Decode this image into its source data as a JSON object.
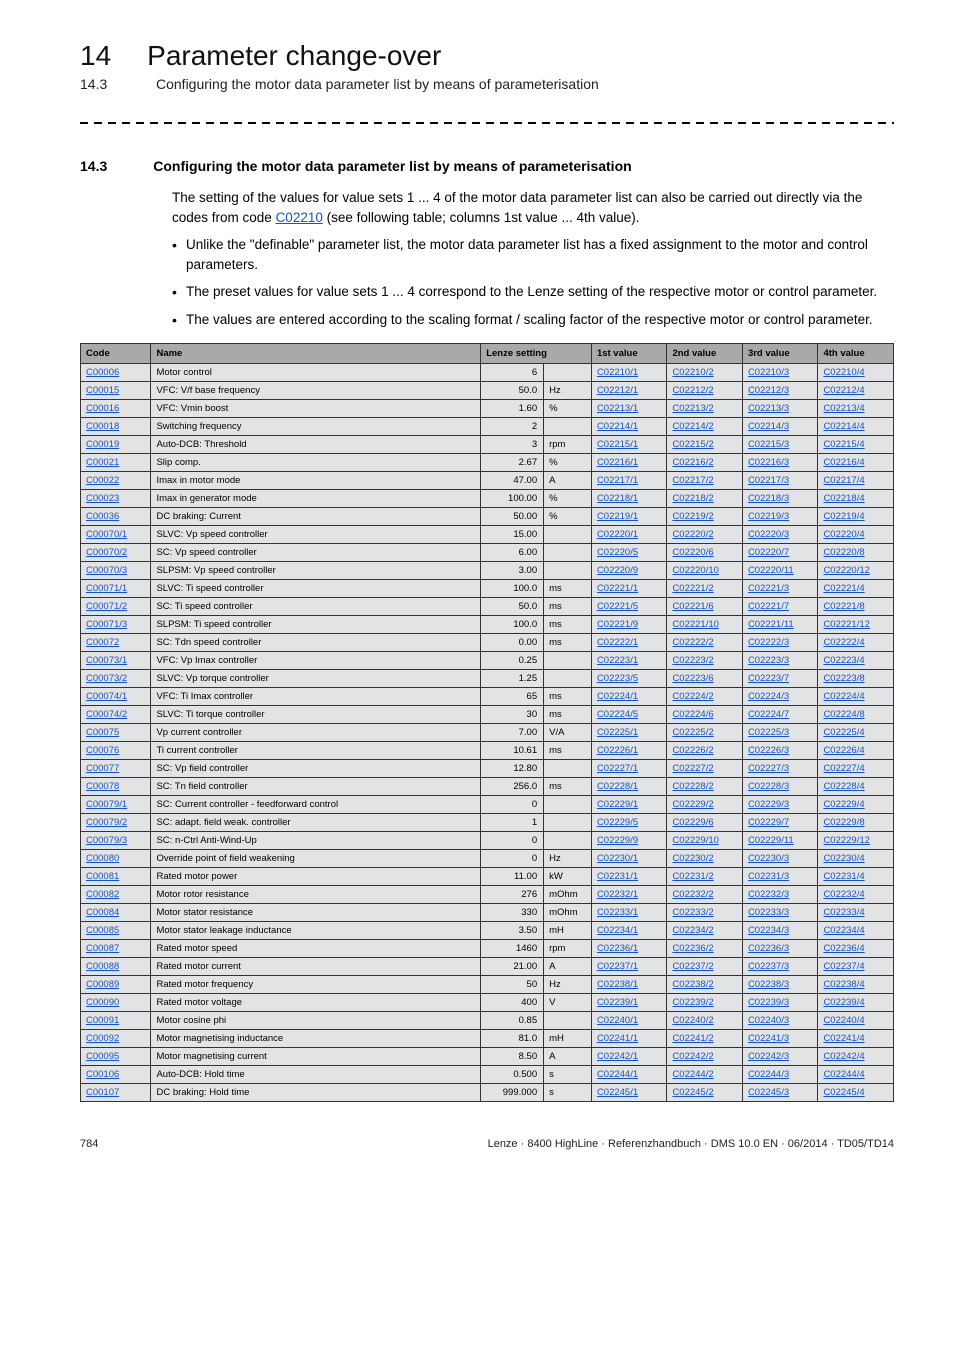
{
  "header": {
    "chapter_num": "14",
    "chapter_title": "Parameter change-over",
    "sub_num": "14.3",
    "sub_title": "Configuring the motor data parameter list by means of parameterisation"
  },
  "section": {
    "num": "14.3",
    "title": "Configuring the motor data parameter list by means of parameterisation"
  },
  "intro": {
    "para1_a": "The setting of the values for value sets 1 ... 4 of the motor data parameter list can also be carried out directly via the codes from code ",
    "para1_link": "C02210",
    "para1_b": " (see following table; columns 1st value ... 4th value).",
    "bullet1": "Unlike the \"definable\" parameter list, the motor data parameter list has a fixed assignment to the motor and control parameters.",
    "bullet2": "The preset values for value sets 1 ... 4 correspond to the Lenze setting of the respective motor or control parameter.",
    "bullet3": "The values are entered according to the scaling format / scaling factor of the respective motor or control parameter."
  },
  "table": {
    "columns": [
      "Code",
      "Name",
      "Lenze setting",
      "",
      "1st value",
      "2nd value",
      "3rd value",
      "4th value"
    ],
    "rows": [
      {
        "code": "C00006",
        "name": "Motor control",
        "set": "6",
        "unit": "",
        "v": [
          "C02210/1",
          "C02210/2",
          "C02210/3",
          "C02210/4"
        ]
      },
      {
        "code": "C00015",
        "name": "VFC: V/f base frequency",
        "set": "50.0",
        "unit": "Hz",
        "v": [
          "C02212/1",
          "C02212/2",
          "C02212/3",
          "C02212/4"
        ]
      },
      {
        "code": "C00016",
        "name": "VFC: Vmin boost",
        "set": "1.60",
        "unit": "%",
        "v": [
          "C02213/1",
          "C02213/2",
          "C02213/3",
          "C02213/4"
        ]
      },
      {
        "code": "C00018",
        "name": "Switching frequency",
        "set": "2",
        "unit": "",
        "v": [
          "C02214/1",
          "C02214/2",
          "C02214/3",
          "C02214/4"
        ]
      },
      {
        "code": "C00019",
        "name": "Auto-DCB: Threshold",
        "set": "3",
        "unit": "rpm",
        "v": [
          "C02215/1",
          "C02215/2",
          "C02215/3",
          "C02215/4"
        ]
      },
      {
        "code": "C00021",
        "name": "Slip comp.",
        "set": "2.67",
        "unit": "%",
        "v": [
          "C02216/1",
          "C02216/2",
          "C02216/3",
          "C02216/4"
        ]
      },
      {
        "code": "C00022",
        "name": "Imax in motor mode",
        "set": "47.00",
        "unit": "A",
        "v": [
          "C02217/1",
          "C02217/2",
          "C02217/3",
          "C02217/4"
        ]
      },
      {
        "code": "C00023",
        "name": "Imax in generator mode",
        "set": "100.00",
        "unit": "%",
        "v": [
          "C02218/1",
          "C02218/2",
          "C02218/3",
          "C02218/4"
        ]
      },
      {
        "code": "C00036",
        "name": "DC braking: Current",
        "set": "50.00",
        "unit": "%",
        "v": [
          "C02219/1",
          "C02219/2",
          "C02219/3",
          "C02219/4"
        ]
      },
      {
        "code": "C00070/1",
        "name": "SLVC: Vp speed controller",
        "set": "15.00",
        "unit": "",
        "v": [
          "C02220/1",
          "C02220/2",
          "C02220/3",
          "C02220/4"
        ]
      },
      {
        "code": "C00070/2",
        "name": "SC: Vp speed controller",
        "set": "6.00",
        "unit": "",
        "v": [
          "C02220/5",
          "C02220/6",
          "C02220/7",
          "C02220/8"
        ]
      },
      {
        "code": "C00070/3",
        "name": "SLPSM: Vp speed controller",
        "set": "3.00",
        "unit": "",
        "v": [
          "C02220/9",
          "C02220/10",
          "C02220/11",
          "C02220/12"
        ]
      },
      {
        "code": "C00071/1",
        "name": "SLVC: Ti speed controller",
        "set": "100.0",
        "unit": "ms",
        "v": [
          "C02221/1",
          "C02221/2",
          "C02221/3",
          "C02221/4"
        ]
      },
      {
        "code": "C00071/2",
        "name": "SC: Ti speed controller",
        "set": "50.0",
        "unit": "ms",
        "v": [
          "C02221/5",
          "C02221/6",
          "C02221/7",
          "C02221/8"
        ]
      },
      {
        "code": "C00071/3",
        "name": "SLPSM: Ti speed controller",
        "set": "100.0",
        "unit": "ms",
        "v": [
          "C02221/9",
          "C02221/10",
          "C02221/11",
          "C02221/12"
        ]
      },
      {
        "code": "C00072",
        "name": "SC: Tdn speed controller",
        "set": "0.00",
        "unit": "ms",
        "v": [
          "C02222/1",
          "C02222/2",
          "C02222/3",
          "C02222/4"
        ]
      },
      {
        "code": "C00073/1",
        "name": "VFC: Vp Imax controller",
        "set": "0.25",
        "unit": "",
        "v": [
          "C02223/1",
          "C02223/2",
          "C02223/3",
          "C02223/4"
        ]
      },
      {
        "code": "C00073/2",
        "name": "SLVC: Vp torque controller",
        "set": "1.25",
        "unit": "",
        "v": [
          "C02223/5",
          "C02223/6",
          "C02223/7",
          "C02223/8"
        ]
      },
      {
        "code": "C00074/1",
        "name": "VFC: Ti Imax controller",
        "set": "65",
        "unit": "ms",
        "v": [
          "C02224/1",
          "C02224/2",
          "C02224/3",
          "C02224/4"
        ]
      },
      {
        "code": "C00074/2",
        "name": "SLVC: Ti torque controller",
        "set": "30",
        "unit": "ms",
        "v": [
          "C02224/5",
          "C02224/6",
          "C02224/7",
          "C02224/8"
        ]
      },
      {
        "code": "C00075",
        "name": "Vp current controller",
        "set": "7.00",
        "unit": "V/A",
        "v": [
          "C02225/1",
          "C02225/2",
          "C02225/3",
          "C02225/4"
        ]
      },
      {
        "code": "C00076",
        "name": "Ti current controller",
        "set": "10.61",
        "unit": "ms",
        "v": [
          "C02226/1",
          "C02226/2",
          "C02226/3",
          "C02226/4"
        ]
      },
      {
        "code": "C00077",
        "name": "SC: Vp field controller",
        "set": "12.80",
        "unit": "",
        "v": [
          "C02227/1",
          "C02227/2",
          "C02227/3",
          "C02227/4"
        ]
      },
      {
        "code": "C00078",
        "name": "SC: Tn field controller",
        "set": "256.0",
        "unit": "ms",
        "v": [
          "C02228/1",
          "C02228/2",
          "C02228/3",
          "C02228/4"
        ]
      },
      {
        "code": "C00079/1",
        "name": "SC: Current controller - feedforward control",
        "set": "0",
        "unit": "",
        "v": [
          "C02229/1",
          "C02229/2",
          "C02229/3",
          "C02229/4"
        ]
      },
      {
        "code": "C00079/2",
        "name": "SC: adapt. field weak. controller",
        "set": "1",
        "unit": "",
        "v": [
          "C02229/5",
          "C02229/6",
          "C02229/7",
          "C02229/8"
        ]
      },
      {
        "code": "C00079/3",
        "name": "SC: n-Ctrl Anti-Wind-Up",
        "set": "0",
        "unit": "",
        "v": [
          "C02229/9",
          "C02229/10",
          "C02229/11",
          "C02229/12"
        ]
      },
      {
        "code": "C00080",
        "name": "Override point of field weakening",
        "set": "0",
        "unit": "Hz",
        "v": [
          "C02230/1",
          "C02230/2",
          "C02230/3",
          "C02230/4"
        ]
      },
      {
        "code": "C00081",
        "name": "Rated motor power",
        "set": "11.00",
        "unit": "kW",
        "v": [
          "C02231/1",
          "C02231/2",
          "C02231/3",
          "C02231/4"
        ]
      },
      {
        "code": "C00082",
        "name": "Motor rotor resistance",
        "set": "276",
        "unit": "mOhm",
        "v": [
          "C02232/1",
          "C02232/2",
          "C02232/3",
          "C02232/4"
        ]
      },
      {
        "code": "C00084",
        "name": "Motor stator resistance",
        "set": "330",
        "unit": "mOhm",
        "v": [
          "C02233/1",
          "C02233/2",
          "C02233/3",
          "C02233/4"
        ]
      },
      {
        "code": "C00085",
        "name": "Motor stator leakage inductance",
        "set": "3.50",
        "unit": "mH",
        "v": [
          "C02234/1",
          "C02234/2",
          "C02234/3",
          "C02234/4"
        ]
      },
      {
        "code": "C00087",
        "name": "Rated motor speed",
        "set": "1460",
        "unit": "rpm",
        "v": [
          "C02236/1",
          "C02236/2",
          "C02236/3",
          "C02236/4"
        ]
      },
      {
        "code": "C00088",
        "name": "Rated motor current",
        "set": "21.00",
        "unit": "A",
        "v": [
          "C02237/1",
          "C02237/2",
          "C02237/3",
          "C02237/4"
        ]
      },
      {
        "code": "C00089",
        "name": "Rated motor frequency",
        "set": "50",
        "unit": "Hz",
        "v": [
          "C02238/1",
          "C02238/2",
          "C02238/3",
          "C02238/4"
        ]
      },
      {
        "code": "C00090",
        "name": "Rated motor voltage",
        "set": "400",
        "unit": "V",
        "v": [
          "C02239/1",
          "C02239/2",
          "C02239/3",
          "C02239/4"
        ]
      },
      {
        "code": "C00091",
        "name": "Motor cosine phi",
        "set": "0.85",
        "unit": "",
        "v": [
          "C02240/1",
          "C02240/2",
          "C02240/3",
          "C02240/4"
        ]
      },
      {
        "code": "C00092",
        "name": "Motor magnetising inductance",
        "set": "81.0",
        "unit": "mH",
        "v": [
          "C02241/1",
          "C02241/2",
          "C02241/3",
          "C02241/4"
        ]
      },
      {
        "code": "C00095",
        "name": "Motor magnetising current",
        "set": "8.50",
        "unit": "A",
        "v": [
          "C02242/1",
          "C02242/2",
          "C02242/3",
          "C02242/4"
        ]
      },
      {
        "code": "C00106",
        "name": "Auto-DCB: Hold time",
        "set": "0.500",
        "unit": "s",
        "v": [
          "C02244/1",
          "C02244/2",
          "C02244/3",
          "C02244/4"
        ]
      },
      {
        "code": "C00107",
        "name": "DC braking: Hold time",
        "set": "999.000",
        "unit": "s",
        "v": [
          "C02245/1",
          "C02245/2",
          "C02245/3",
          "C02245/4"
        ]
      }
    ]
  },
  "footer": {
    "page": "784",
    "ref": "Lenze · 8400 HighLine · Referenzhandbuch · DMS 10.0 EN · 06/2014 · TD05/TD14"
  }
}
